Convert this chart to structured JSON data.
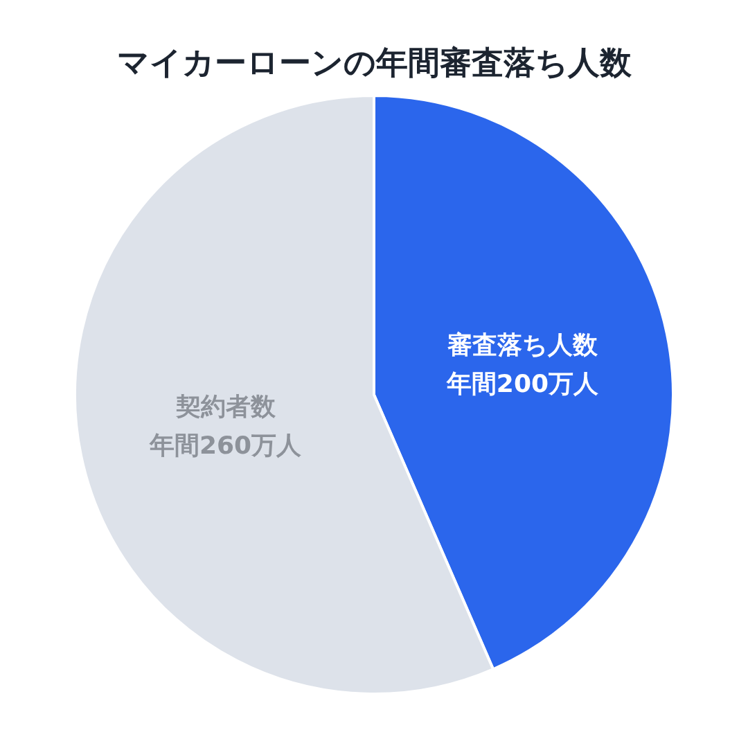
{
  "chart_data": {
    "type": "pie",
    "title": "マイカーローンの年間審査落ち人数",
    "categories": [
      "審査落ち人数",
      "契約者数"
    ],
    "values": [
      200,
      260
    ],
    "value_labels": [
      "年間200万人",
      "年間260万人"
    ],
    "colors": [
      "#2b66ec",
      "#dde2ea"
    ],
    "legend": false
  }
}
